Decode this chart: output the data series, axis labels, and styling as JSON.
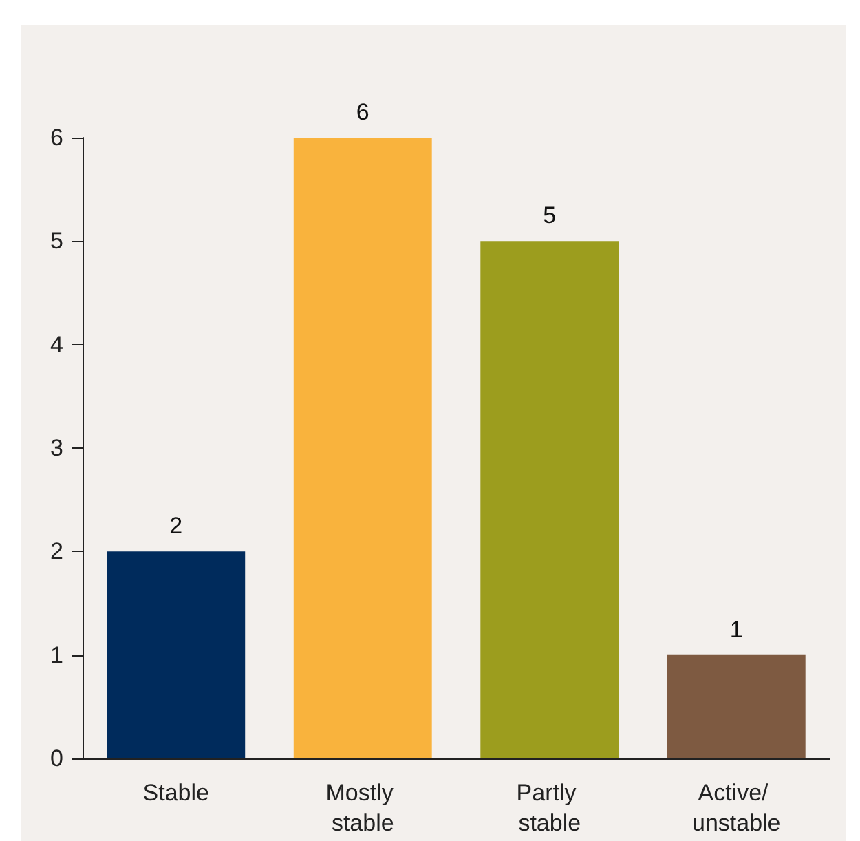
{
  "chart_data": {
    "type": "bar",
    "categories": [
      "Stable",
      "Mostly stable",
      "Partly stable",
      "Active/ unstable"
    ],
    "values": [
      2,
      6,
      5,
      1
    ],
    "colors": [
      "#002b5c",
      "#f9b33d",
      "#9c9d1e",
      "#7e5a41"
    ],
    "ylim": [
      0,
      6
    ],
    "yticks": [
      0,
      1,
      2,
      3,
      4,
      5,
      6
    ],
    "grid": false,
    "data_labels": true
  }
}
